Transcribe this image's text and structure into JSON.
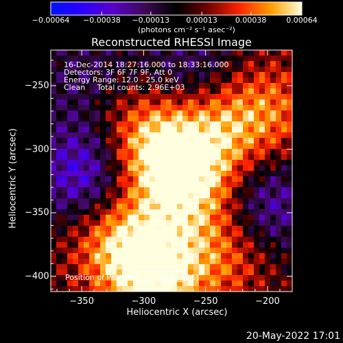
{
  "chart_data": {
    "type": "heatmap",
    "title": "Reconstructed RHESSI Image",
    "xlabel": "Heliocentric X (arcsec)",
    "ylabel": "Heliocentric Y (arcsec)",
    "xlim": [
      -375,
      -180
    ],
    "ylim": [
      -412,
      -222
    ],
    "x_ticks": [
      "−350",
      "−300",
      "−250",
      "−200"
    ],
    "x_tick_values": [
      -350,
      -300,
      -250,
      -200
    ],
    "y_ticks": [
      "−250",
      "−300",
      "−350",
      "−400"
    ],
    "y_tick_values": [
      -250,
      -300,
      -350,
      -400
    ],
    "colorbar": {
      "tick_labels": [
        "−0.00064",
        "−0.00038",
        "−0.00013",
        "0.00013",
        "0.00038",
        "0.00064"
      ],
      "tick_values": [
        -0.00064,
        -0.00038,
        -0.00013,
        0.00013,
        0.00038,
        0.00064
      ],
      "units": "(photons cm⁻² s⁻¹ asec⁻²)",
      "range": [
        -0.00064,
        0.00064
      ]
    },
    "annotations": [
      "16-Dec-2014 18:27:16.000 to 18:33:16.000",
      "Detectors: 3F 6F 7F 9F, Att 0",
      "Energy Range: 12.0 - 25.0 keV",
      "Clean     Total counts: 2.96E+03"
    ],
    "peak_label": "Position of Peak = [",
    "peak_value": "-292, -401]",
    "peak_position": [
      -292,
      -401
    ],
    "bright_regions": [
      {
        "x": -290,
        "y": -300,
        "level": 0.95
      },
      {
        "x": -290,
        "y": -398,
        "level": 0.95
      },
      {
        "x": -260,
        "y": -330,
        "level": 0.75
      },
      {
        "x": -320,
        "y": -370,
        "level": 0.7
      },
      {
        "x": -240,
        "y": -285,
        "level": 0.55
      },
      {
        "x": -200,
        "y": -270,
        "level": 0.5
      },
      {
        "x": -330,
        "y": -260,
        "level": 0.45
      },
      {
        "x": -230,
        "y": -380,
        "level": 0.5
      }
    ],
    "dark_regions": [
      {
        "x": -340,
        "y": -250,
        "level": -0.6
      },
      {
        "x": -345,
        "y": -320,
        "level": -0.75
      },
      {
        "x": -205,
        "y": -345,
        "level": -0.65
      },
      {
        "x": -260,
        "y": -240,
        "level": -0.4
      }
    ]
  },
  "footer": "20-May-2022 17:01",
  "colors": {
    "background": "#000000",
    "negative": "#2a00ff",
    "zero": "#000000",
    "positive_mid": "#ff3c00",
    "peak": "#ffffe0"
  }
}
